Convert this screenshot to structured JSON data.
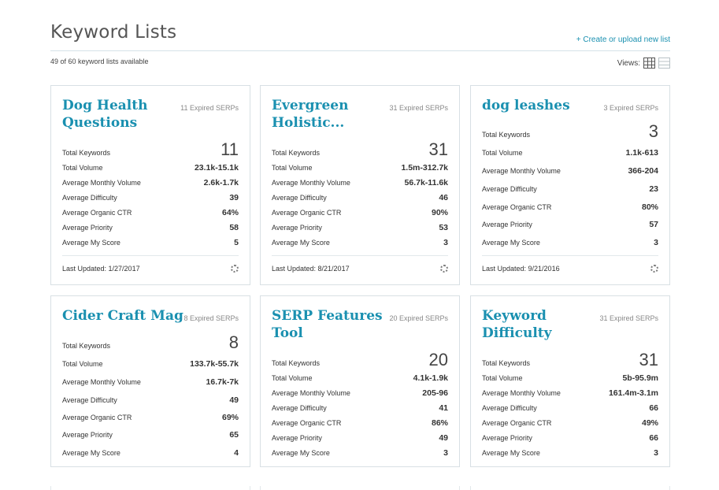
{
  "header": {
    "title": "Keyword Lists",
    "create_link": "+ Create or upload new list",
    "available": "49 of 60 keyword lists available",
    "views_label": "Views:"
  },
  "cards": [
    {
      "name": "Dog Health Questions",
      "expired": "11 Expired SERPs",
      "total_keywords_label": "Total Keywords",
      "total_keywords": "11",
      "total_volume_label": "Total Volume",
      "total_volume": "23.1k-15.1k",
      "avg_monthly_label": "Average Monthly Volume",
      "avg_monthly": "2.6k-1.7k",
      "avg_difficulty_label": "Average Difficulty",
      "avg_difficulty": "39",
      "avg_ctr_label": "Average Organic CTR",
      "avg_ctr": "64%",
      "avg_priority_label": "Average Priority",
      "avg_priority": "58",
      "avg_score_label": "Average My Score",
      "avg_score": "5",
      "updated": "Last Updated: 1/27/2017"
    },
    {
      "name": "Evergreen Holistic...",
      "expired": "31 Expired SERPs",
      "total_keywords_label": "Total Keywords",
      "total_keywords": "31",
      "total_volume_label": "Total Volume",
      "total_volume": "1.5m-312.7k",
      "avg_monthly_label": "Average Monthly Volume",
      "avg_monthly": "56.7k-11.6k",
      "avg_difficulty_label": "Average Difficulty",
      "avg_difficulty": "46",
      "avg_ctr_label": "Average Organic CTR",
      "avg_ctr": "90%",
      "avg_priority_label": "Average Priority",
      "avg_priority": "53",
      "avg_score_label": "Average My Score",
      "avg_score": "3",
      "updated": "Last Updated: 8/21/2017"
    },
    {
      "name": "dog leashes",
      "expired": "3 Expired SERPs",
      "total_keywords_label": "Total Keywords",
      "total_keywords": "3",
      "total_volume_label": "Total Volume",
      "total_volume": "1.1k-613",
      "avg_monthly_label": "Average Monthly Volume",
      "avg_monthly": "366-204",
      "avg_difficulty_label": "Average Difficulty",
      "avg_difficulty": "23",
      "avg_ctr_label": "Average Organic CTR",
      "avg_ctr": "80%",
      "avg_priority_label": "Average Priority",
      "avg_priority": "57",
      "avg_score_label": "Average My Score",
      "avg_score": "3",
      "updated": "Last Updated: 9/21/2016"
    },
    {
      "name": "Cider Craft Mag",
      "expired": "8 Expired SERPs",
      "total_keywords_label": "Total Keywords",
      "total_keywords": "8",
      "total_volume_label": "Total Volume",
      "total_volume": "133.7k-55.7k",
      "avg_monthly_label": "Average Monthly Volume",
      "avg_monthly": "16.7k-7k",
      "avg_difficulty_label": "Average Difficulty",
      "avg_difficulty": "49",
      "avg_ctr_label": "Average Organic CTR",
      "avg_ctr": "69%",
      "avg_priority_label": "Average Priority",
      "avg_priority": "65",
      "avg_score_label": "Average My Score",
      "avg_score": "4",
      "updated": ""
    },
    {
      "name": "SERP Features Tool",
      "expired": "20 Expired SERPs",
      "total_keywords_label": "Total Keywords",
      "total_keywords": "20",
      "total_volume_label": "Total Volume",
      "total_volume": "4.1k-1.9k",
      "avg_monthly_label": "Average Monthly Volume",
      "avg_monthly": "205-96",
      "avg_difficulty_label": "Average Difficulty",
      "avg_difficulty": "41",
      "avg_ctr_label": "Average Organic CTR",
      "avg_ctr": "86%",
      "avg_priority_label": "Average Priority",
      "avg_priority": "49",
      "avg_score_label": "Average My Score",
      "avg_score": "3",
      "updated": ""
    },
    {
      "name": "Keyword Difficulty",
      "expired": "31 Expired SERPs",
      "total_keywords_label": "Total Keywords",
      "total_keywords": "31",
      "total_volume_label": "Total Volume",
      "total_volume": "5b-95.9m",
      "avg_monthly_label": "Average Monthly Volume",
      "avg_monthly": "161.4m-3.1m",
      "avg_difficulty_label": "Average Difficulty",
      "avg_difficulty": "66",
      "avg_ctr_label": "Average Organic CTR",
      "avg_ctr": "49%",
      "avg_priority_label": "Average Priority",
      "avg_priority": "66",
      "avg_score_label": "Average My Score",
      "avg_score": "3",
      "updated": ""
    }
  ]
}
